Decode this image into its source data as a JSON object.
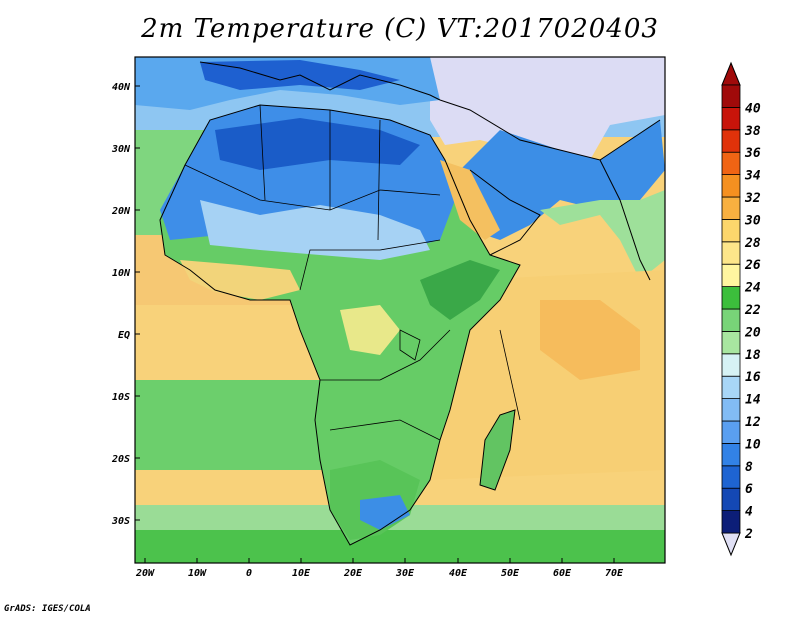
{
  "title": "2m Temperature (C) VT:2017020403",
  "credit": "GrADS: IGES/COLA",
  "map": {
    "lon_labels": [
      "20W",
      "10W",
      "0",
      "10E",
      "20E",
      "30E",
      "40E",
      "50E",
      "60E",
      "70E"
    ],
    "lat_labels": [
      "40N",
      "30N",
      "20N",
      "10N",
      "EQ",
      "10S",
      "20S",
      "30S"
    ]
  },
  "colorbar": {
    "labels": [
      "2",
      "4",
      "6",
      "8",
      "10",
      "12",
      "14",
      "16",
      "18",
      "20",
      "22",
      "24",
      "26",
      "28",
      "30",
      "32",
      "34",
      "36",
      "38",
      "40"
    ],
    "colors": [
      "#0c1e78",
      "#1448b4",
      "#1e64d2",
      "#3282e6",
      "#5a9ff0",
      "#82bcf5",
      "#a8d6f7",
      "#d6f2f5",
      "#a8e6a0",
      "#78d478",
      "#3cbe3c",
      "#fff6a0",
      "#fde68a",
      "#fcd66c",
      "#f8b040",
      "#f59020",
      "#f06414",
      "#e0320a",
      "#c8140a",
      "#a00a0a"
    ],
    "under_color": "#e0e0f5",
    "over_color": "#a00a0a"
  }
}
